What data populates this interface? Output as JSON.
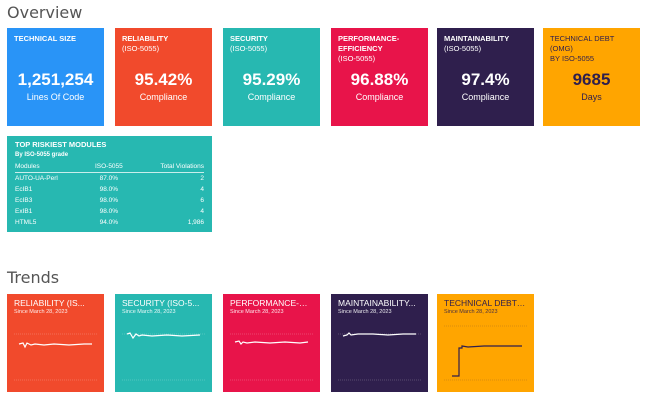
{
  "overview": {
    "title": "Overview",
    "tiles": [
      {
        "title": "TECHNICAL SIZE",
        "sub": "",
        "value": "1,251,254",
        "caption": "Lines Of Code",
        "color": "#2994f7"
      },
      {
        "title": "RELIABILITY",
        "sub": "(ISO-5055)",
        "value": "95.42%",
        "caption": "Compliance",
        "color": "#f14a2c"
      },
      {
        "title": "SECURITY",
        "sub": "(ISO-5055)",
        "value": "95.29%",
        "caption": "Compliance",
        "color": "#27b8b1"
      },
      {
        "title": "PERFORMANCE-EFFICIENCY",
        "sub": "(ISO-5055)",
        "value": "96.88%",
        "caption": "Compliance",
        "color": "#e8144a"
      },
      {
        "title": "MAINTAINABILITY",
        "sub": "(ISO-5055)",
        "value": "97.4%",
        "caption": "Compliance",
        "color": "#2f1f4d"
      },
      {
        "title": "TECHNICAL DEBT (OMG)",
        "sub": "BY ISO-5055",
        "value": "9685",
        "caption": "Days",
        "color": "#ffa500"
      }
    ]
  },
  "modules": {
    "title": "TOP RISKIEST MODULES",
    "subtitle": "By ISO-5055 grade",
    "columns": [
      "Modules",
      "ISO-5055",
      "Total Violations"
    ],
    "rows": [
      [
        "AUTO-UA-Perl",
        "87.0%",
        "2"
      ],
      [
        "EcIB1",
        "98.0%",
        "4"
      ],
      [
        "EcIB3",
        "98.0%",
        "6"
      ],
      [
        "ExIB1",
        "98.0%",
        "4"
      ],
      [
        "HTML5",
        "94.0%",
        "1,986"
      ]
    ]
  },
  "trends": {
    "title": "Trends",
    "tiles": [
      {
        "title": "RELIABILITY (IS...",
        "sub": "Since March 28, 2023",
        "color": "#f14a2c",
        "text_color": "#ffffff",
        "line_color": "#ffffff"
      },
      {
        "title": "SECURITY (ISO-5...",
        "sub": "Since March 28, 2023",
        "color": "#27b8b1",
        "text_color": "#ffffff",
        "line_color": "#ffffff"
      },
      {
        "title": "PERFORMANCE-EFF...",
        "sub": "Since March 28, 2023",
        "color": "#e8144a",
        "text_color": "#ffffff",
        "line_color": "#ffffff"
      },
      {
        "title": "MAINTAINABILITY...",
        "sub": "Since March 28, 2023",
        "color": "#2f1f4d",
        "text_color": "#ffffff",
        "line_color": "#ffffff"
      },
      {
        "title": "TECHNICAL DEBT (OMG...",
        "sub": "Since March 28, 2023",
        "color": "#ffa500",
        "text_color": "#2f1f4d",
        "line_color": "#2f1f4d"
      }
    ]
  }
}
